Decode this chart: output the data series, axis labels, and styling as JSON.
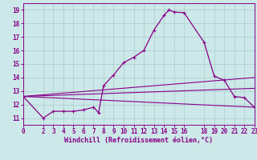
{
  "title": "",
  "xlabel": "Windchill (Refroidissement éolien,°C)",
  "bg_color": "#cce8e8",
  "grid_color": "#aacccc",
  "line_color": "#880088",
  "spine_color": "#880088",
  "xlim": [
    0,
    23
  ],
  "ylim": [
    10.5,
    19.5
  ],
  "xticks": [
    0,
    2,
    3,
    4,
    5,
    6,
    7,
    8,
    9,
    10,
    11,
    12,
    13,
    14,
    15,
    16,
    18,
    19,
    20,
    21,
    22,
    23
  ],
  "yticks": [
    11,
    12,
    13,
    14,
    15,
    16,
    17,
    18,
    19
  ],
  "curve_x": [
    0,
    2,
    3,
    4,
    5,
    6,
    7,
    7.5,
    8,
    9,
    10,
    11,
    12,
    13,
    14,
    14.5,
    15,
    16,
    18,
    19,
    20,
    21,
    22,
    23
  ],
  "curve_y": [
    12.6,
    11.0,
    11.5,
    11.5,
    11.5,
    11.6,
    11.8,
    11.4,
    13.4,
    14.2,
    15.1,
    15.5,
    16.0,
    17.5,
    18.6,
    19.0,
    18.85,
    18.8,
    16.6,
    14.1,
    13.8,
    12.6,
    12.5,
    11.8
  ],
  "line1_x": [
    0,
    23
  ],
  "line1_y": [
    12.6,
    11.8
  ],
  "line2_x": [
    0,
    23
  ],
  "line2_y": [
    12.6,
    14.0
  ],
  "line3_x": [
    0,
    23
  ],
  "line3_y": [
    12.6,
    13.2
  ],
  "tick_fontsize": 5.5,
  "xlabel_fontsize": 6.0
}
